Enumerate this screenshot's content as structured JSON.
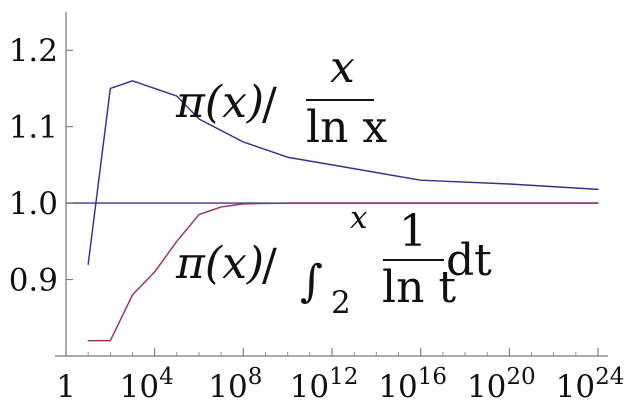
{
  "chart_data": {
    "type": "line",
    "x_scale": "log10",
    "xlim": [
      1,
      1e+24
    ],
    "ylim": [
      0.8,
      1.25
    ],
    "x_ticks": [
      {
        "value": 1,
        "label": "1"
      },
      {
        "value": 10000.0,
        "label_base": "10",
        "label_exp": "4"
      },
      {
        "value": 100000000.0,
        "label_base": "10",
        "label_exp": "8"
      },
      {
        "value": 1000000000000.0,
        "label_base": "10",
        "label_exp": "12"
      },
      {
        "value": 1e+16,
        "label_base": "10",
        "label_exp": "16"
      },
      {
        "value": 1e+20,
        "label_base": "10",
        "label_exp": "20"
      },
      {
        "value": 1e+24,
        "label_base": "10",
        "label_exp": "24"
      }
    ],
    "y_ticks": [
      {
        "value": 0.9,
        "label": "0.9"
      },
      {
        "value": 1.0,
        "label": "1.0"
      },
      {
        "value": 1.1,
        "label": "1.1"
      },
      {
        "value": 1.2,
        "label": "1.2"
      }
    ],
    "reference_line": {
      "y": 1.0,
      "color": "#3a3a8f"
    },
    "annotations": {
      "upper": {
        "lhs": "π(x)",
        "slash": "/",
        "numerator": "x",
        "denominator": "ln x"
      },
      "lower": {
        "lhs": "π(x)",
        "slash": "/",
        "integral": "∫",
        "lower_limit": "2",
        "upper_limit": "x",
        "numerator": "1",
        "denominator": "ln t",
        "differential": "dt"
      }
    },
    "series": [
      {
        "id": "pi_over_x_over_ln_x",
        "color": "#33338f",
        "x": [
          10.0,
          100.0,
          1000.0,
          10000.0,
          100000.0,
          1000000.0,
          100000000.0,
          10000000000.0,
          1000000000000.0,
          1e+16,
          1e+20,
          1e+24
        ],
        "y": [
          0.92,
          1.15,
          1.16,
          1.15,
          1.14,
          1.11,
          1.08,
          1.06,
          1.05,
          1.03,
          1.025,
          1.018
        ]
      },
      {
        "id": "pi_over_li",
        "color": "#9a2f66",
        "x": [
          10.0,
          100.0,
          1000.0,
          10000.0,
          100000.0,
          1000000.0,
          10000000.0,
          100000000.0,
          10000000000.0,
          1000000000000.0,
          1e+16,
          1e+20,
          1e+24
        ],
        "y": [
          0.82,
          0.82,
          0.88,
          0.91,
          0.95,
          0.985,
          0.995,
          0.999,
          1.0,
          1.0,
          1.0,
          1.0,
          1.0
        ]
      }
    ]
  }
}
